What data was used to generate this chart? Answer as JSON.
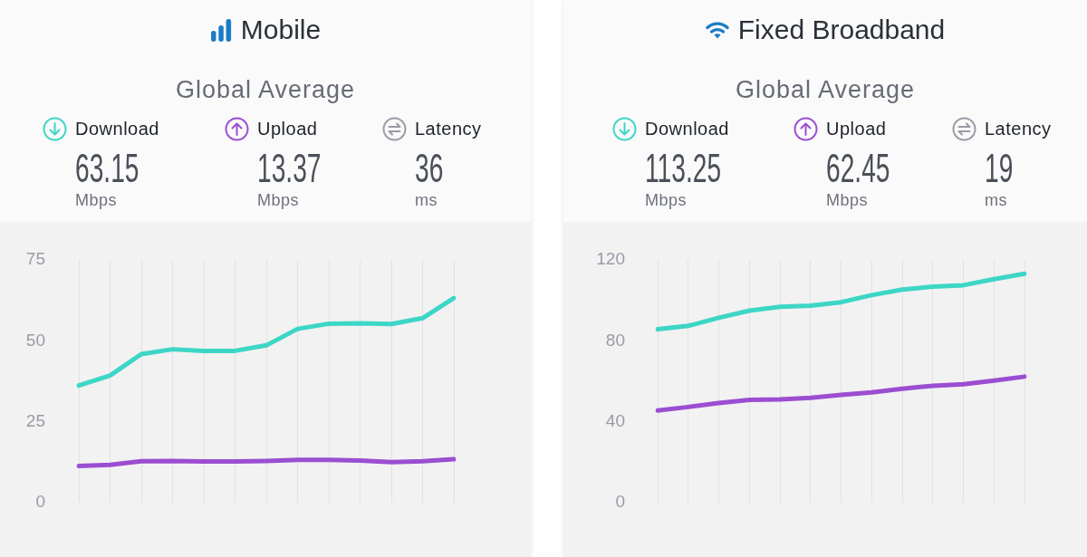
{
  "chart_data": [
    {
      "type": "line",
      "title": "Mobile",
      "subtitle": "Global Average",
      "categories": [
        null,
        null,
        null,
        null,
        null,
        null,
        null,
        null,
        null,
        null,
        null,
        null,
        null
      ],
      "series": [
        {
          "name": "Download",
          "color": "#3dd6c6",
          "values": [
            36.2,
            39.3,
            45.9,
            47.4,
            46.9,
            46.9,
            48.6,
            53.7,
            55.3,
            55.4,
            55.2,
            57.0,
            63.2
          ]
        },
        {
          "name": "Upload",
          "color": "#9b4ed1",
          "values": [
            11.3,
            11.7,
            12.8,
            12.9,
            12.7,
            12.7,
            12.9,
            13.2,
            13.2,
            13.0,
            12.5,
            12.8,
            13.4
          ]
        }
      ],
      "ylim": [
        0,
        75
      ],
      "yticks": [
        0,
        25,
        50,
        75
      ],
      "grid": "x",
      "legend": "top",
      "marker": "none",
      "tick_labels": "y",
      "annotations": [
        "63.15",
        "Mbps",
        "13.37",
        "Mbps",
        "Latency",
        "36",
        "ms"
      ]
    },
    {
      "type": "line",
      "title": "Fixed Broadband",
      "subtitle": "Global Average",
      "categories": [
        null,
        null,
        null,
        null,
        null,
        null,
        null,
        null,
        null,
        null,
        null,
        null,
        null
      ],
      "series": [
        {
          "name": "Download",
          "color": "#3dd6c6",
          "values": [
            85.7,
            87.4,
            91.4,
            94.9,
            96.8,
            97.4,
            99.1,
            102.6,
            105.3,
            106.8,
            107.5,
            110.5,
            113.2
          ]
        },
        {
          "name": "Upload",
          "color": "#9b4ed1",
          "values": [
            45.6,
            47.3,
            49.3,
            50.8,
            51.0,
            51.8,
            53.3,
            54.5,
            56.3,
            57.8,
            58.5,
            60.3,
            62.3
          ]
        }
      ],
      "ylim": [
        0,
        120
      ],
      "yticks": [
        0,
        40,
        80,
        120
      ],
      "grid": "x",
      "legend": "top",
      "marker": "none",
      "tick_labels": "y",
      "annotations": [
        "113.25",
        "Mbps",
        "62.45",
        "Mbps",
        "Latency",
        "19",
        "ms"
      ]
    }
  ]
}
